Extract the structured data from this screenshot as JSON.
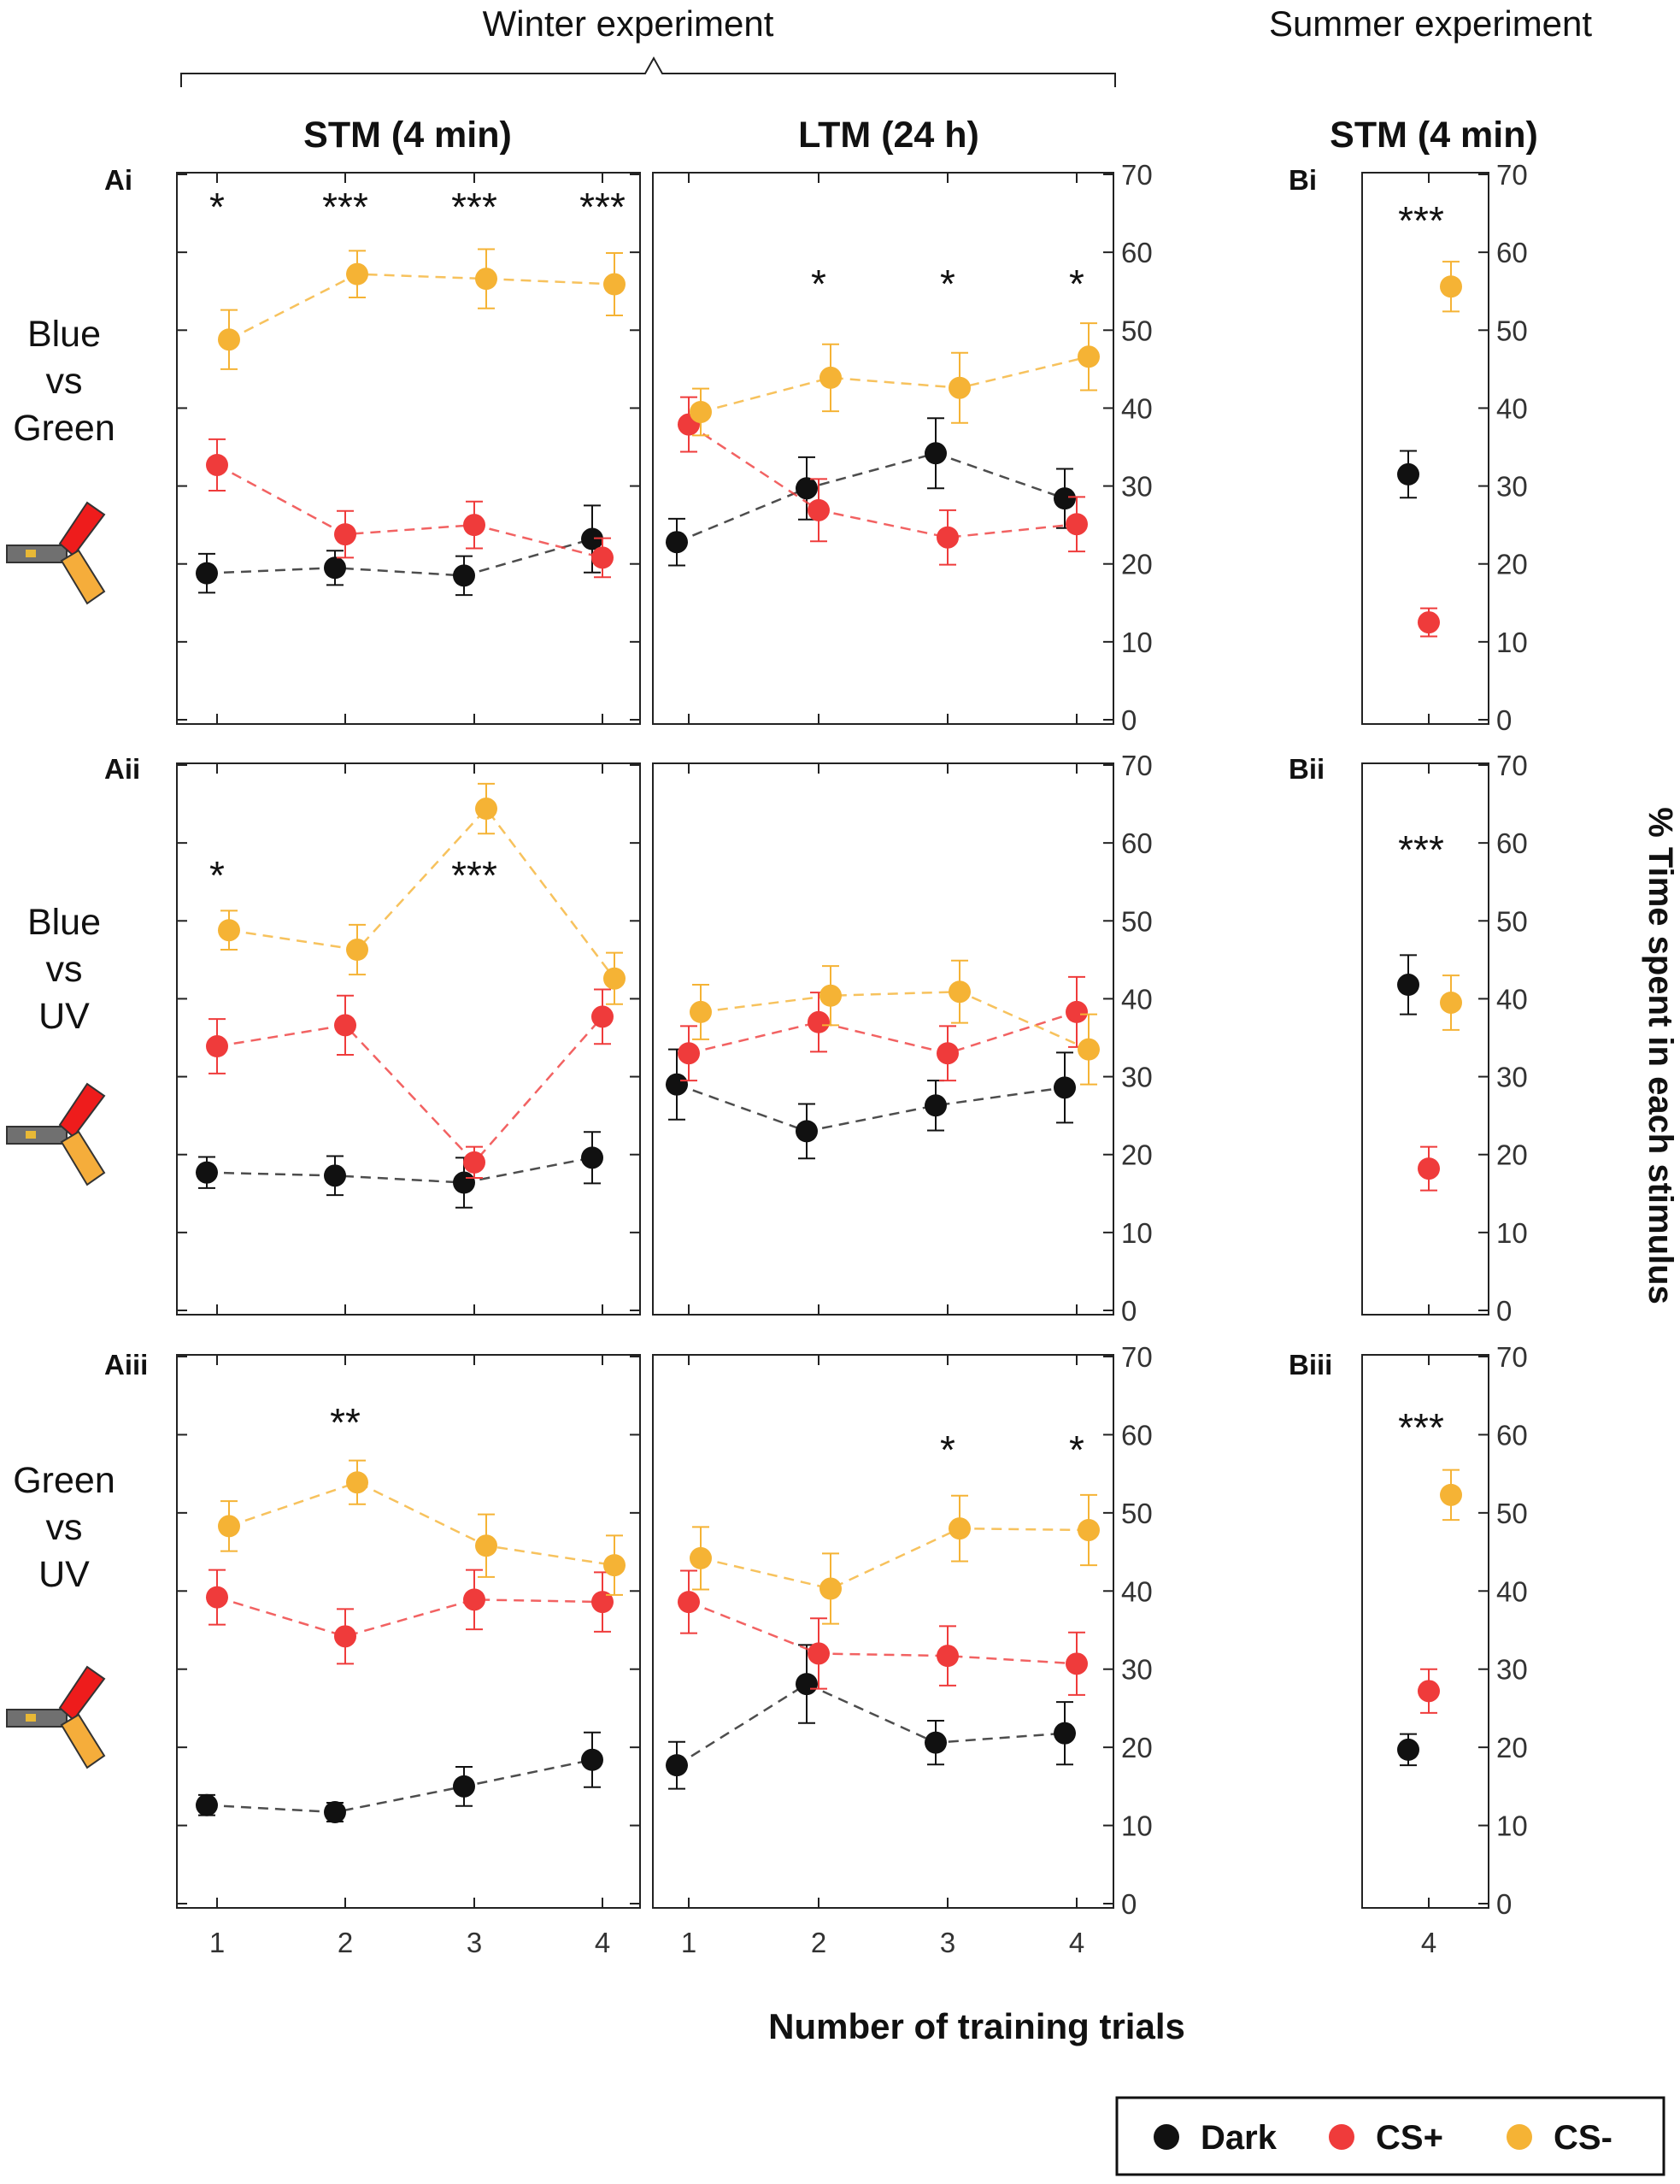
{
  "header": {
    "winter": "Winter experiment",
    "summer": "Summer experiment",
    "col_stm": "STM (4 min)",
    "col_ltm": "LTM (24 h)",
    "col_summer_stm": "STM (4 min)"
  },
  "rows": [
    {
      "label_lines": [
        "Blue",
        "vs",
        "Green"
      ],
      "stm_label": "Ai",
      "summer_label": "Bi"
    },
    {
      "label_lines": [
        "Blue",
        "vs",
        "UV"
      ],
      "stm_label": "Aii",
      "summer_label": "Bii"
    },
    {
      "label_lines": [
        "Green",
        "vs",
        "UV"
      ],
      "stm_label": "Aiii",
      "summer_label": "Biii"
    }
  ],
  "axes": {
    "xlabel": "Number of training trials",
    "ylabel": "% Time spent in each stimulus"
  },
  "legend": {
    "items": [
      {
        "label": "Dark",
        "color": "#111111"
      },
      {
        "label": "CS+",
        "color": "#ef3b3b"
      },
      {
        "label": "CS-",
        "color": "#f5b335"
      }
    ]
  },
  "chart_data": {
    "type": "scatter",
    "title": "% Time spent in each stimulus vs Number of training trials",
    "xlabel": "Number of training trials",
    "ylabel": "% Time spent in each stimulus",
    "ylim": [
      0,
      70
    ],
    "yticks": [
      0,
      10,
      20,
      30,
      40,
      50,
      60,
      70
    ],
    "x": [
      1,
      2,
      3,
      4
    ],
    "series_names": [
      "Dark",
      "CS+",
      "CS-"
    ],
    "colors": {
      "Dark": "#111111",
      "CS+": "#ef3b3b",
      "CS-": "#f5b335"
    },
    "panels": [
      {
        "id": "Ai",
        "condition": "Blue vs Green",
        "memory": "STM (4 min)",
        "season": "Winter",
        "series": [
          {
            "name": "Dark",
            "x": [
              1,
              2,
              3,
              4
            ],
            "values": [
              18.8,
              19.5,
              18.5,
              23.2
            ],
            "err": [
              2.5,
              2.2,
              2.5,
              4.3
            ]
          },
          {
            "name": "CS+",
            "x": [
              1,
              2,
              3,
              4
            ],
            "values": [
              32.7,
              23.8,
              25.0,
              20.8
            ],
            "err": [
              3.3,
              3.0,
              3.0,
              2.5
            ]
          },
          {
            "name": "CS-",
            "x": [
              1,
              2,
              3,
              4
            ],
            "values": [
              48.8,
              57.2,
              56.6,
              55.9
            ],
            "err": [
              3.8,
              3.0,
              3.8,
              4.0
            ]
          }
        ],
        "significance": [
          {
            "x": 1,
            "label": "*"
          },
          {
            "x": 2,
            "label": "***"
          },
          {
            "x": 3,
            "label": "***"
          },
          {
            "x": 4,
            "label": "***"
          }
        ]
      },
      {
        "id": "Ai-LTM",
        "condition": "Blue vs Green",
        "memory": "LTM (24 h)",
        "season": "Winter",
        "series": [
          {
            "name": "Dark",
            "x": [
              1,
              2,
              3,
              4
            ],
            "values": [
              22.8,
              29.7,
              34.2,
              28.4
            ],
            "err": [
              3.0,
              4.0,
              4.5,
              3.8
            ]
          },
          {
            "name": "CS+",
            "x": [
              1,
              2,
              3,
              4
            ],
            "values": [
              37.9,
              26.9,
              23.4,
              25.1
            ],
            "err": [
              3.5,
              4.0,
              3.5,
              3.5
            ]
          },
          {
            "name": "CS-",
            "x": [
              1,
              2,
              3,
              4
            ],
            "values": [
              39.5,
              43.9,
              42.6,
              46.6
            ],
            "err": [
              3.0,
              4.3,
              4.5,
              4.3
            ]
          }
        ],
        "significance": [
          {
            "x": 2,
            "label": "*"
          },
          {
            "x": 3,
            "label": "*"
          },
          {
            "x": 4,
            "label": "*"
          }
        ]
      },
      {
        "id": "Bi",
        "condition": "Blue vs Green",
        "memory": "STM (4 min)",
        "season": "Summer",
        "series": [
          {
            "name": "Dark",
            "x": [
              4
            ],
            "values": [
              31.5
            ],
            "err": [
              3.0
            ]
          },
          {
            "name": "CS+",
            "x": [
              4
            ],
            "values": [
              12.5
            ],
            "err": [
              1.8
            ]
          },
          {
            "name": "CS-",
            "x": [
              4
            ],
            "values": [
              55.6
            ],
            "err": [
              3.2
            ]
          }
        ],
        "significance": [
          {
            "x": 4,
            "label": "***"
          }
        ]
      },
      {
        "id": "Aii",
        "condition": "Blue vs UV",
        "memory": "STM (4 min)",
        "season": "Winter",
        "series": [
          {
            "name": "Dark",
            "x": [
              1,
              2,
              3,
              4
            ],
            "values": [
              17.7,
              17.3,
              16.4,
              19.6
            ],
            "err": [
              2.0,
              2.5,
              3.2,
              3.3
            ]
          },
          {
            "name": "CS+",
            "x": [
              1,
              2,
              3,
              4
            ],
            "values": [
              33.9,
              36.6,
              19.0,
              37.7
            ],
            "err": [
              3.5,
              3.8,
              2.0,
              3.5
            ]
          },
          {
            "name": "CS-",
            "x": [
              1,
              2,
              3,
              4
            ],
            "values": [
              48.8,
              46.3,
              64.4,
              42.6
            ],
            "err": [
              2.5,
              3.2,
              3.2,
              3.3
            ]
          }
        ],
        "significance": [
          {
            "x": 1,
            "label": "*"
          },
          {
            "x": 3,
            "label": "***"
          }
        ]
      },
      {
        "id": "Aii-LTM",
        "condition": "Blue vs UV",
        "memory": "LTM (24 h)",
        "season": "Winter",
        "series": [
          {
            "name": "Dark",
            "x": [
              1,
              2,
              3,
              4
            ],
            "values": [
              29.0,
              23.0,
              26.3,
              28.6
            ],
            "err": [
              4.5,
              3.5,
              3.2,
              4.5
            ]
          },
          {
            "name": "CS+",
            "x": [
              1,
              2,
              3,
              4
            ],
            "values": [
              33.0,
              37.0,
              33.0,
              38.3
            ],
            "err": [
              3.5,
              3.8,
              3.5,
              4.5
            ]
          },
          {
            "name": "CS-",
            "x": [
              1,
              2,
              3,
              4
            ],
            "values": [
              38.3,
              40.4,
              40.9,
              33.5
            ],
            "err": [
              3.5,
              3.8,
              4.0,
              4.5
            ]
          }
        ],
        "significance": []
      },
      {
        "id": "Bii",
        "condition": "Blue vs UV",
        "memory": "STM (4 min)",
        "season": "Summer",
        "series": [
          {
            "name": "Dark",
            "x": [
              4
            ],
            "values": [
              41.8
            ],
            "err": [
              3.8
            ]
          },
          {
            "name": "CS+",
            "x": [
              4
            ],
            "values": [
              18.2
            ],
            "err": [
              2.8
            ]
          },
          {
            "name": "CS-",
            "x": [
              4
            ],
            "values": [
              39.5
            ],
            "err": [
              3.5
            ]
          }
        ],
        "significance": [
          {
            "x": 4,
            "label": "***"
          }
        ]
      },
      {
        "id": "Aiii",
        "condition": "Green vs UV",
        "memory": "STM (4 min)",
        "season": "Winter",
        "series": [
          {
            "name": "Dark",
            "x": [
              1,
              2,
              3,
              4
            ],
            "values": [
              12.6,
              11.7,
              15.0,
              18.4
            ],
            "err": [
              1.3,
              1.2,
              2.5,
              3.5
            ]
          },
          {
            "name": "CS+",
            "x": [
              1,
              2,
              3,
              4
            ],
            "values": [
              39.2,
              34.2,
              38.9,
              38.6
            ],
            "err": [
              3.5,
              3.5,
              3.8,
              3.8
            ]
          },
          {
            "name": "CS-",
            "x": [
              1,
              2,
              3,
              4
            ],
            "values": [
              48.3,
              53.9,
              45.8,
              43.3
            ],
            "err": [
              3.2,
              2.8,
              4.0,
              3.8
            ]
          }
        ],
        "significance": [
          {
            "x": 2,
            "label": "**"
          }
        ]
      },
      {
        "id": "Aiii-LTM",
        "condition": "Green vs UV",
        "memory": "LTM (24 h)",
        "season": "Winter",
        "series": [
          {
            "name": "Dark",
            "x": [
              1,
              2,
              3,
              4
            ],
            "values": [
              17.7,
              28.1,
              20.6,
              21.8
            ],
            "err": [
              3.0,
              5.0,
              2.8,
              4.0
            ]
          },
          {
            "name": "CS+",
            "x": [
              1,
              2,
              3,
              4
            ],
            "values": [
              38.6,
              32.0,
              31.7,
              30.7
            ],
            "err": [
              4.0,
              4.5,
              3.8,
              4.0
            ]
          },
          {
            "name": "CS-",
            "x": [
              1,
              2,
              3,
              4
            ],
            "values": [
              44.2,
              40.3,
              48.0,
              47.8
            ],
            "err": [
              4.0,
              4.5,
              4.2,
              4.5
            ]
          }
        ],
        "significance": [
          {
            "x": 3,
            "label": "*"
          },
          {
            "x": 4,
            "label": "*"
          }
        ]
      },
      {
        "id": "Biii",
        "condition": "Green vs UV",
        "memory": "STM (4 min)",
        "season": "Summer",
        "series": [
          {
            "name": "Dark",
            "x": [
              4
            ],
            "values": [
              19.7
            ],
            "err": [
              2.0
            ]
          },
          {
            "name": "CS+",
            "x": [
              4
            ],
            "values": [
              27.2
            ],
            "err": [
              2.8
            ]
          },
          {
            "name": "CS-",
            "x": [
              4
            ],
            "values": [
              52.3
            ],
            "err": [
              3.2
            ]
          }
        ],
        "significance": [
          {
            "x": 4,
            "label": "***"
          }
        ]
      }
    ]
  }
}
